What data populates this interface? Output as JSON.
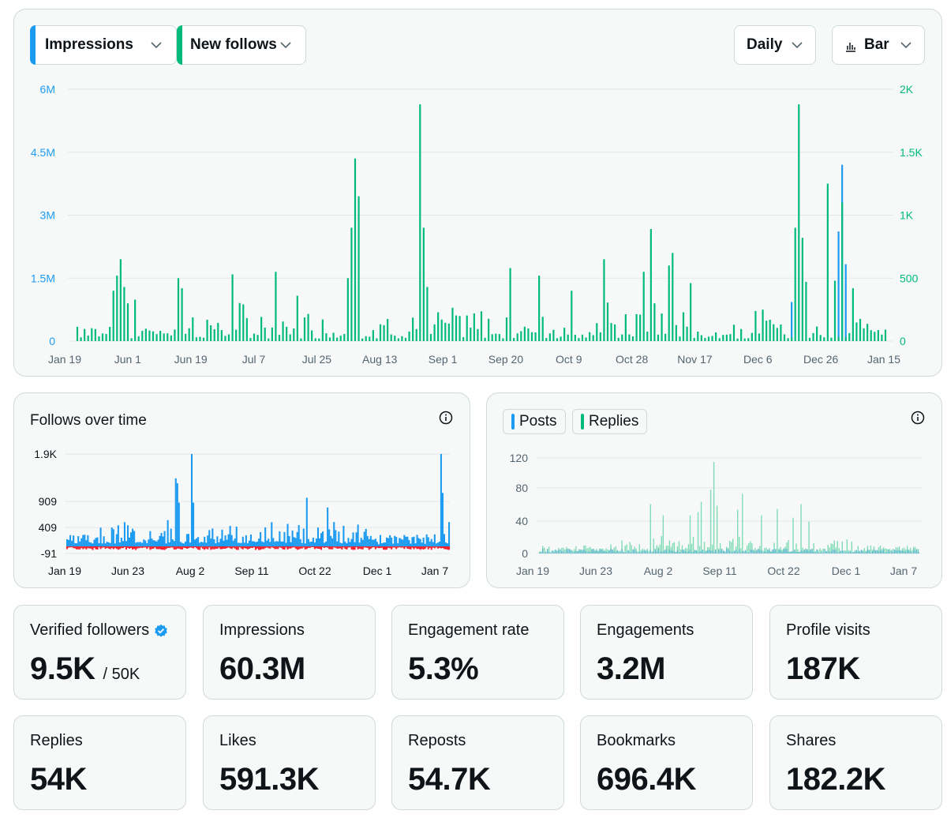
{
  "colors": {
    "blue": "#1d9bf0",
    "green": "#00ba7c",
    "red": "#f4212e",
    "grid": "#e1e8ed",
    "axis_text": "#536471",
    "light_green": "#7fdbb6"
  },
  "toolbar": {
    "metric1": "Impressions",
    "metric2": "New follows",
    "interval": "Daily",
    "chart_type": "Bar"
  },
  "main_chart": {
    "left_ticks": [
      "6M",
      "4.5M",
      "3M",
      "1.5M",
      "0"
    ],
    "right_ticks": [
      "2K",
      "1.5K",
      "1K",
      "500",
      "0"
    ],
    "x_labels": [
      "Jan 19",
      "Jun 1",
      "Jun 19",
      "Jul 7",
      "Jul 25",
      "Aug 13",
      "Sep 1",
      "Sep 20",
      "Oct 9",
      "Oct 28",
      "Nov 17",
      "Dec 6",
      "Dec 26",
      "Jan 15"
    ]
  },
  "follows_chart": {
    "title": "Follows over time",
    "y_ticks": [
      "1.9K",
      "909",
      "409",
      "-91"
    ],
    "x_labels": [
      "Jan 19",
      "Jun 23",
      "Aug 2",
      "Sep 11",
      "Oct 22",
      "Dec 1",
      "Jan 7"
    ]
  },
  "posts_chart": {
    "legend_posts": "Posts",
    "legend_replies": "Replies",
    "y_ticks": [
      "120",
      "80",
      "40",
      "0"
    ],
    "x_labels": [
      "Jan 19",
      "Jun 23",
      "Aug 2",
      "Sep 11",
      "Oct 22",
      "Dec 1",
      "Jan 7"
    ]
  },
  "stats": [
    {
      "label": "Verified followers",
      "value": "9.5K",
      "sub": "/ 50K"
    },
    {
      "label": "Impressions",
      "value": "60.3M"
    },
    {
      "label": "Engagement rate",
      "value": "5.3%"
    },
    {
      "label": "Engagements",
      "value": "3.2M"
    },
    {
      "label": "Profile visits",
      "value": "187K"
    },
    {
      "label": "Replies",
      "value": "54K"
    },
    {
      "label": "Likes",
      "value": "591.3K"
    },
    {
      "label": "Reposts",
      "value": "54.7K"
    },
    {
      "label": "Bookmarks",
      "value": "696.4K"
    },
    {
      "label": "Shares",
      "value": "182.2K"
    }
  ],
  "chart_data": [
    {
      "type": "bar",
      "title": "Impressions / New follows (Daily)",
      "x_range": [
        "Jan 19",
        "Jan 15"
      ],
      "ylabel_left": "Impressions",
      "ylabel_right": "New follows",
      "ylim_left": [
        0,
        6000000
      ],
      "ylim_right": [
        0,
        2000
      ],
      "series": [
        {
          "name": "New follows",
          "axis": "right",
          "peak_values": [
            {
              "date": "Jul 13",
              "value": 1450
            },
            {
              "date": "Jul 14",
              "value": 1100
            },
            {
              "date": "Jul 22",
              "value": 1870
            },
            {
              "date": "Jul 24",
              "value": 900
            },
            {
              "date": "Sep 25",
              "value": 890
            },
            {
              "date": "Oct 11",
              "value": 700
            },
            {
              "date": "Jan 3",
              "value": 1880
            },
            {
              "date": "Jan 5",
              "value": 1250
            }
          ]
        },
        {
          "name": "Impressions",
          "axis": "left",
          "peak_values": [
            {
              "date": "Jan 12",
              "value": 4200000
            },
            {
              "date": "Jan 11",
              "value": 2600000
            }
          ]
        }
      ]
    },
    {
      "type": "bar",
      "title": "Follows over time",
      "ylim": [
        -91,
        1900
      ],
      "series": [
        {
          "name": "Follows",
          "peak_values": [
            {
              "date": "Jul 20",
              "value": 1900
            },
            {
              "date": "Jul 14",
              "value": 1400
            },
            {
              "date": "Jan 3",
              "value": 1900
            },
            {
              "date": "Jan 5",
              "value": 1300
            }
          ]
        },
        {
          "name": "Unfollows",
          "approx_min": -91
        }
      ]
    },
    {
      "type": "bar",
      "title": "Posts / Replies",
      "ylim": [
        0,
        130
      ],
      "series": [
        {
          "name": "Posts",
          "approx_max": 10
        },
        {
          "name": "Replies",
          "peak_values": [
            {
              "date": "Aug 2",
              "value": 115
            }
          ]
        }
      ]
    }
  ]
}
